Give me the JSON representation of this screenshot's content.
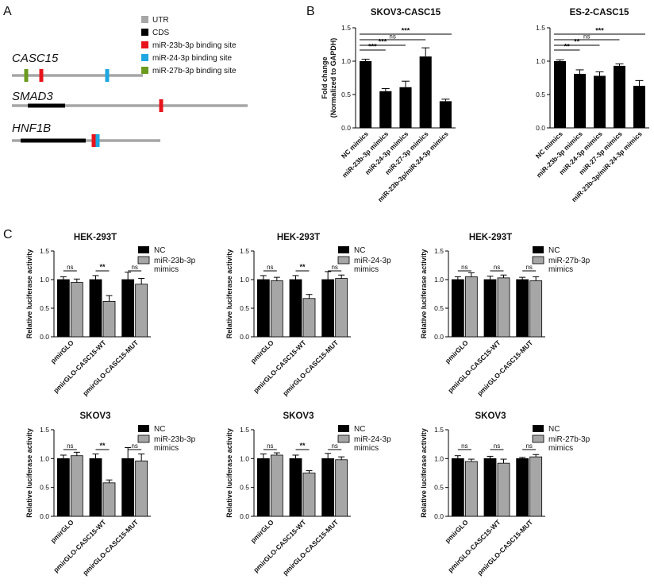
{
  "panels": {
    "A": "A",
    "B": "B",
    "C": "C"
  },
  "panel_a": {
    "legend": [
      {
        "label": "UTR",
        "color": "#a6a6a6"
      },
      {
        "label": "CDS",
        "color": "#000000"
      },
      {
        "label": "miR-23b-3p binding site",
        "color": "#e8141c"
      },
      {
        "label": "miR-24-3p   binding site",
        "color": "#1ea7e1"
      },
      {
        "label": "miR-27b-3p binding site",
        "color": "#6b9a1e"
      }
    ],
    "genes": [
      {
        "name": "CASC15",
        "cds": false,
        "sites": [
          "#6b9a1e",
          "#e8141c",
          "#1ea7e1"
        ]
      },
      {
        "name": "SMAD3",
        "cds": true,
        "sites": [
          "#e8141c"
        ]
      },
      {
        "name": "HNF1B",
        "cds": true,
        "sites": [
          "#e8141c",
          "#1ea7e1"
        ]
      }
    ]
  },
  "colors": {
    "black": "#000000",
    "gray": "#a6a6a6"
  },
  "chart_data": [
    {
      "id": "b1",
      "type": "bar",
      "title": "SKOV3-CASC15",
      "ylabel": [
        "Fold change",
        "(Normalized to GAPDH)"
      ],
      "ylim": [
        0,
        1.5
      ],
      "yticks": [
        "0.0",
        "0.5",
        "1.0",
        "1.5"
      ],
      "categories": [
        "NC mimics",
        "miR-23b-3p mimics",
        "miR-24-3p mimics",
        "miR-27-3p mimics",
        "miR-23b-3p/miR-24-3p mimics"
      ],
      "values": [
        1.0,
        0.55,
        0.61,
        1.07,
        0.4
      ],
      "errors": [
        0.03,
        0.04,
        0.09,
        0.13,
        0.03
      ],
      "comparisons": [
        {
          "from": 0,
          "to": 1,
          "label": "***"
        },
        {
          "from": 0,
          "to": 2,
          "label": "***"
        },
        {
          "from": 0,
          "to": 3,
          "label": "ns"
        },
        {
          "from": 0,
          "to": 4,
          "label": "***"
        }
      ]
    },
    {
      "id": "b2",
      "type": "bar",
      "title": "ES-2-CASC15",
      "ylabel": [],
      "ylim": [
        0,
        1.5
      ],
      "yticks": [
        "0.0",
        "0.5",
        "1.0",
        "1.5"
      ],
      "categories": [
        "NC mimics",
        "miR-23b-3p mimics",
        "miR-24-3p mimics",
        "miR-27-3p mimics",
        "miR-23b-3p/miR-24-3p mimics"
      ],
      "values": [
        1.0,
        0.81,
        0.78,
        0.93,
        0.63
      ],
      "errors": [
        0.02,
        0.06,
        0.06,
        0.03,
        0.08
      ],
      "comparisons": [
        {
          "from": 0,
          "to": 1,
          "label": "**"
        },
        {
          "from": 0,
          "to": 2,
          "label": "**"
        },
        {
          "from": 0,
          "to": 3,
          "label": "ns"
        },
        {
          "from": 0,
          "to": 4,
          "label": "***"
        }
      ]
    },
    {
      "id": "c1",
      "type": "bar",
      "title": "HEK-293T",
      "ylabel": [
        "Relative luciferase activity"
      ],
      "ylim": [
        0,
        1.5
      ],
      "yticks": [
        "0.0",
        "0.5",
        "1.0",
        "1.5"
      ],
      "categories": [
        "pmirGLO",
        "pmirGLO-CASC15-WT",
        "pmirGLO-CASC15-MUT"
      ],
      "series": [
        {
          "name": "NC",
          "values": [
            1.0,
            1.0,
            1.0
          ],
          "errors": [
            0.05,
            0.07,
            0.13
          ]
        },
        {
          "name": "miR-23b-3p mimics",
          "values": [
            0.95,
            0.62,
            0.92
          ],
          "errors": [
            0.06,
            0.1,
            0.1
          ]
        }
      ],
      "legend": [
        "NC",
        "miR-23b-3p",
        "mimics"
      ],
      "sig": [
        "ns",
        "**",
        "ns"
      ]
    },
    {
      "id": "c2",
      "type": "bar",
      "title": "HEK-293T",
      "ylabel": [
        "Relative luciferase activity"
      ],
      "ylim": [
        0,
        1.5
      ],
      "yticks": [
        "0.0",
        "0.5",
        "1.0",
        "1.5"
      ],
      "categories": [
        "pmirGLO",
        "pmirGLO-CASC15-WT",
        "pmirGLO-CASC15-MUT"
      ],
      "series": [
        {
          "name": "NC",
          "values": [
            1.0,
            1.0,
            1.0
          ],
          "errors": [
            0.07,
            0.07,
            0.14
          ]
        },
        {
          "name": "miR-24-3p mimics",
          "values": [
            0.98,
            0.67,
            1.02
          ],
          "errors": [
            0.06,
            0.07,
            0.06
          ]
        }
      ],
      "legend": [
        "NC",
        "miR-24-3p",
        "mimics"
      ],
      "sig": [
        "ns",
        "**",
        "ns"
      ]
    },
    {
      "id": "c3",
      "type": "bar",
      "title": "HEK-293T",
      "ylabel": [
        "Relative luciferase activity"
      ],
      "ylim": [
        0,
        1.5
      ],
      "yticks": [
        "0.0",
        "0.5",
        "1.0",
        "1.5"
      ],
      "categories": [
        "pmirGLO",
        "pmirGLO-CASC15-WT",
        "pmirGLO-CASC15-MUT"
      ],
      "series": [
        {
          "name": "NC",
          "values": [
            1.0,
            1.0,
            1.0
          ],
          "errors": [
            0.05,
            0.06,
            0.04
          ]
        },
        {
          "name": "miR-27b-3p mimics",
          "values": [
            1.05,
            1.03,
            0.98
          ],
          "errors": [
            0.07,
            0.05,
            0.07
          ]
        }
      ],
      "legend": [
        "NC",
        "miR-27b-3p",
        "mimics"
      ],
      "sig": [
        "ns",
        "ns",
        "ns"
      ]
    },
    {
      "id": "c4",
      "type": "bar",
      "title": "SKOV3",
      "ylabel": [
        "Relative luciferase activity"
      ],
      "ylim": [
        0,
        1.5
      ],
      "yticks": [
        "0.0",
        "0.5",
        "1.0",
        "1.5"
      ],
      "categories": [
        "pmirGLO",
        "pmirGLO-CASC15-WT",
        "pmirGLO-CASC15-MUT"
      ],
      "series": [
        {
          "name": "NC",
          "values": [
            1.0,
            1.0,
            1.0
          ],
          "errors": [
            0.06,
            0.08,
            0.19
          ]
        },
        {
          "name": "miR-23b-3p mimics",
          "values": [
            1.05,
            0.58,
            0.96
          ],
          "errors": [
            0.06,
            0.05,
            0.12
          ]
        }
      ],
      "legend": [
        "NC",
        "miR-23b-3p",
        "mimics"
      ],
      "sig": [
        "ns",
        "**",
        "ns"
      ]
    },
    {
      "id": "c5",
      "type": "bar",
      "title": "SKOV3",
      "ylabel": [
        "Relative luciferase activity"
      ],
      "ylim": [
        0,
        1.5
      ],
      "yticks": [
        "0.0",
        "0.5",
        "1.0",
        "1.5"
      ],
      "categories": [
        "pmirGLO",
        "pmirGLO-CASC15-WT",
        "pmirGLO-CASC15-MUT"
      ],
      "series": [
        {
          "name": "NC",
          "values": [
            1.0,
            1.0,
            1.0
          ],
          "errors": [
            0.08,
            0.06,
            0.09
          ]
        },
        {
          "name": "miR-24-3p mimics",
          "values": [
            1.06,
            0.75,
            0.98
          ],
          "errors": [
            0.04,
            0.04,
            0.05
          ]
        }
      ],
      "legend": [
        "NC",
        "miR-24-3p",
        "mimics"
      ],
      "sig": [
        "ns",
        "**",
        "ns"
      ]
    },
    {
      "id": "c6",
      "type": "bar",
      "title": "SKOV3",
      "ylabel": [
        "Relative luciferase activity"
      ],
      "ylim": [
        0,
        1.5
      ],
      "yticks": [
        "0.0",
        "0.5",
        "1.0",
        "1.5"
      ],
      "categories": [
        "pmirGLO",
        "pmirGLO-CASC15-WT",
        "pmirGLO-CASC15-MUT"
      ],
      "series": [
        {
          "name": "NC",
          "values": [
            1.0,
            1.0,
            1.0
          ],
          "errors": [
            0.05,
            0.04,
            0.02
          ]
        },
        {
          "name": "miR-27b-3p mimics",
          "values": [
            0.95,
            0.92,
            1.03
          ],
          "errors": [
            0.04,
            0.07,
            0.04
          ]
        }
      ],
      "legend": [
        "NC",
        "miR-27b-3p",
        "mimics"
      ],
      "sig": [
        "ns",
        "ns",
        "ns"
      ]
    }
  ]
}
